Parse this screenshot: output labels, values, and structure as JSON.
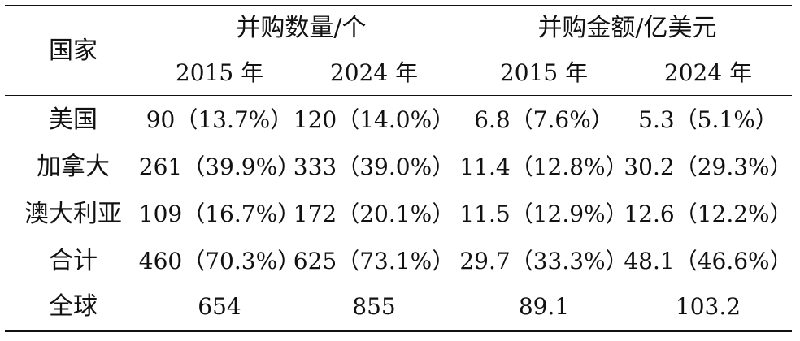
{
  "table": {
    "header": {
      "country": "国家",
      "group_count": "并购数量/个",
      "group_amount": "并购金额/亿美元",
      "years": [
        "2015 年",
        "2024 年",
        "2015 年",
        "2024 年"
      ]
    },
    "rows": [
      {
        "country": "美国",
        "values": [
          "90（13.7%）",
          "120（14.0%）",
          "6.8（7.6%）",
          "5.3（5.1%）"
        ]
      },
      {
        "country": "加拿大",
        "values": [
          "261（39.9%）",
          "333（39.0%）",
          "11.4（12.8%）",
          "30.2（29.3%）"
        ]
      },
      {
        "country": "澳大利亚",
        "values": [
          "109（16.7%）",
          "172（20.1%）",
          "11.5（12.9%）",
          "12.6（12.2%）"
        ]
      },
      {
        "country": "合计",
        "values": [
          "460（70.3%）",
          "625（73.1%）",
          "29.7（33.3%）",
          "48.1（46.6%）"
        ]
      },
      {
        "country": "全球",
        "values": [
          "654",
          "855",
          "89.1",
          "103.2"
        ]
      }
    ]
  }
}
